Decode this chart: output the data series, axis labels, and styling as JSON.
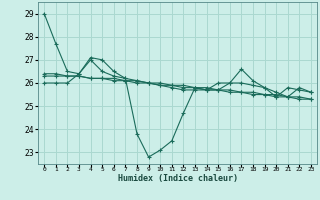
{
  "xlabel": "Humidex (Indice chaleur)",
  "bg_color": "#cceee8",
  "grid_color": "#aad8d0",
  "line_color": "#1a6b5a",
  "xlim": [
    -0.5,
    23.5
  ],
  "ylim": [
    22.5,
    29.5
  ],
  "xticks": [
    0,
    1,
    2,
    3,
    4,
    5,
    6,
    7,
    8,
    9,
    10,
    11,
    12,
    13,
    14,
    15,
    16,
    17,
    18,
    19,
    20,
    21,
    22,
    23
  ],
  "yticks": [
    23,
    24,
    25,
    26,
    27,
    28,
    29
  ],
  "series": [
    [
      29.0,
      27.7,
      26.5,
      26.4,
      27.1,
      27.0,
      26.5,
      26.2,
      23.8,
      22.8,
      23.1,
      23.5,
      24.7,
      25.8,
      25.7,
      26.0,
      26.0,
      26.6,
      26.1,
      25.8,
      25.4,
      25.8,
      25.7,
      25.6
    ],
    [
      26.3,
      26.3,
      26.3,
      26.3,
      26.2,
      26.2,
      26.2,
      26.1,
      26.1,
      26.0,
      26.0,
      25.9,
      25.9,
      25.8,
      25.8,
      25.7,
      25.7,
      25.6,
      25.6,
      25.5,
      25.5,
      25.4,
      25.4,
      25.3
    ],
    [
      26.4,
      26.4,
      26.3,
      26.3,
      26.2,
      26.2,
      26.1,
      26.1,
      26.0,
      26.0,
      25.9,
      25.9,
      25.8,
      25.8,
      25.7,
      25.7,
      25.6,
      25.6,
      25.5,
      25.5,
      25.4,
      25.4,
      25.3,
      25.3
    ],
    [
      26.0,
      26.0,
      26.0,
      26.4,
      27.0,
      26.5,
      26.3,
      26.2,
      26.1,
      26.0,
      25.9,
      25.8,
      25.7,
      25.7,
      25.7,
      25.7,
      26.0,
      26.0,
      25.9,
      25.8,
      25.6,
      25.4,
      25.8,
      25.6
    ]
  ]
}
